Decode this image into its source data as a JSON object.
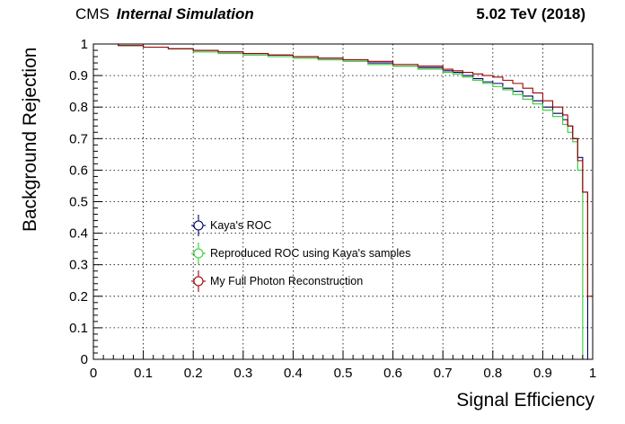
{
  "header": {
    "experiment": "CMS",
    "subtitle": "Internal Simulation",
    "energy_label": "5.02 TeV (2018)"
  },
  "chart_data": {
    "type": "line",
    "xlabel": "Signal Efficiency",
    "ylabel": "Background Rejection",
    "xlim": [
      0,
      1
    ],
    "ylim": [
      0,
      1
    ],
    "grid": true,
    "x_ticks": [
      "0",
      "0.1",
      "0.2",
      "0.3",
      "0.4",
      "0.5",
      "0.6",
      "0.7",
      "0.8",
      "0.9",
      "1"
    ],
    "y_ticks": [
      "0",
      "0.1",
      "0.2",
      "0.3",
      "0.4",
      "0.5",
      "0.6",
      "0.7",
      "0.8",
      "0.9",
      "1"
    ],
    "legend_position": "middle-left",
    "x": [
      0.0,
      0.05,
      0.1,
      0.15,
      0.2,
      0.25,
      0.3,
      0.35,
      0.4,
      0.45,
      0.5,
      0.55,
      0.6,
      0.65,
      0.7,
      0.72,
      0.74,
      0.76,
      0.78,
      0.8,
      0.82,
      0.84,
      0.86,
      0.88,
      0.9,
      0.92,
      0.94,
      0.95,
      0.96,
      0.97,
      0.98,
      0.99,
      1.0
    ],
    "series": [
      {
        "name": "Kaya's ROC",
        "color": "#000066",
        "values": [
          1.0,
          0.995,
          0.99,
          0.985,
          0.98,
          0.975,
          0.97,
          0.965,
          0.96,
          0.955,
          0.95,
          0.94,
          0.93,
          0.925,
          0.915,
          0.91,
          0.9,
          0.89,
          0.88,
          0.875,
          0.86,
          0.85,
          0.835,
          0.82,
          0.8,
          0.78,
          0.76,
          0.74,
          0.7,
          0.64,
          0.53,
          0.0,
          0.0
        ]
      },
      {
        "name": "Reproduced ROC using Kaya's samples",
        "color": "#33cc33",
        "values": [
          1.0,
          0.995,
          0.99,
          0.985,
          0.975,
          0.97,
          0.965,
          0.96,
          0.955,
          0.95,
          0.945,
          0.935,
          0.93,
          0.92,
          0.91,
          0.905,
          0.895,
          0.885,
          0.875,
          0.865,
          0.855,
          0.84,
          0.825,
          0.81,
          0.79,
          0.77,
          0.745,
          0.72,
          0.69,
          0.6,
          0.0,
          0.0,
          0.0
        ]
      },
      {
        "name": "My Full Photon Reconstruction",
        "color": "#990000",
        "values": [
          1.0,
          0.995,
          0.99,
          0.985,
          0.98,
          0.975,
          0.97,
          0.965,
          0.96,
          0.955,
          0.95,
          0.945,
          0.935,
          0.93,
          0.92,
          0.915,
          0.91,
          0.905,
          0.9,
          0.895,
          0.885,
          0.875,
          0.86,
          0.845,
          0.82,
          0.8,
          0.775,
          0.74,
          0.7,
          0.63,
          0.53,
          0.2,
          0.2
        ]
      }
    ]
  }
}
